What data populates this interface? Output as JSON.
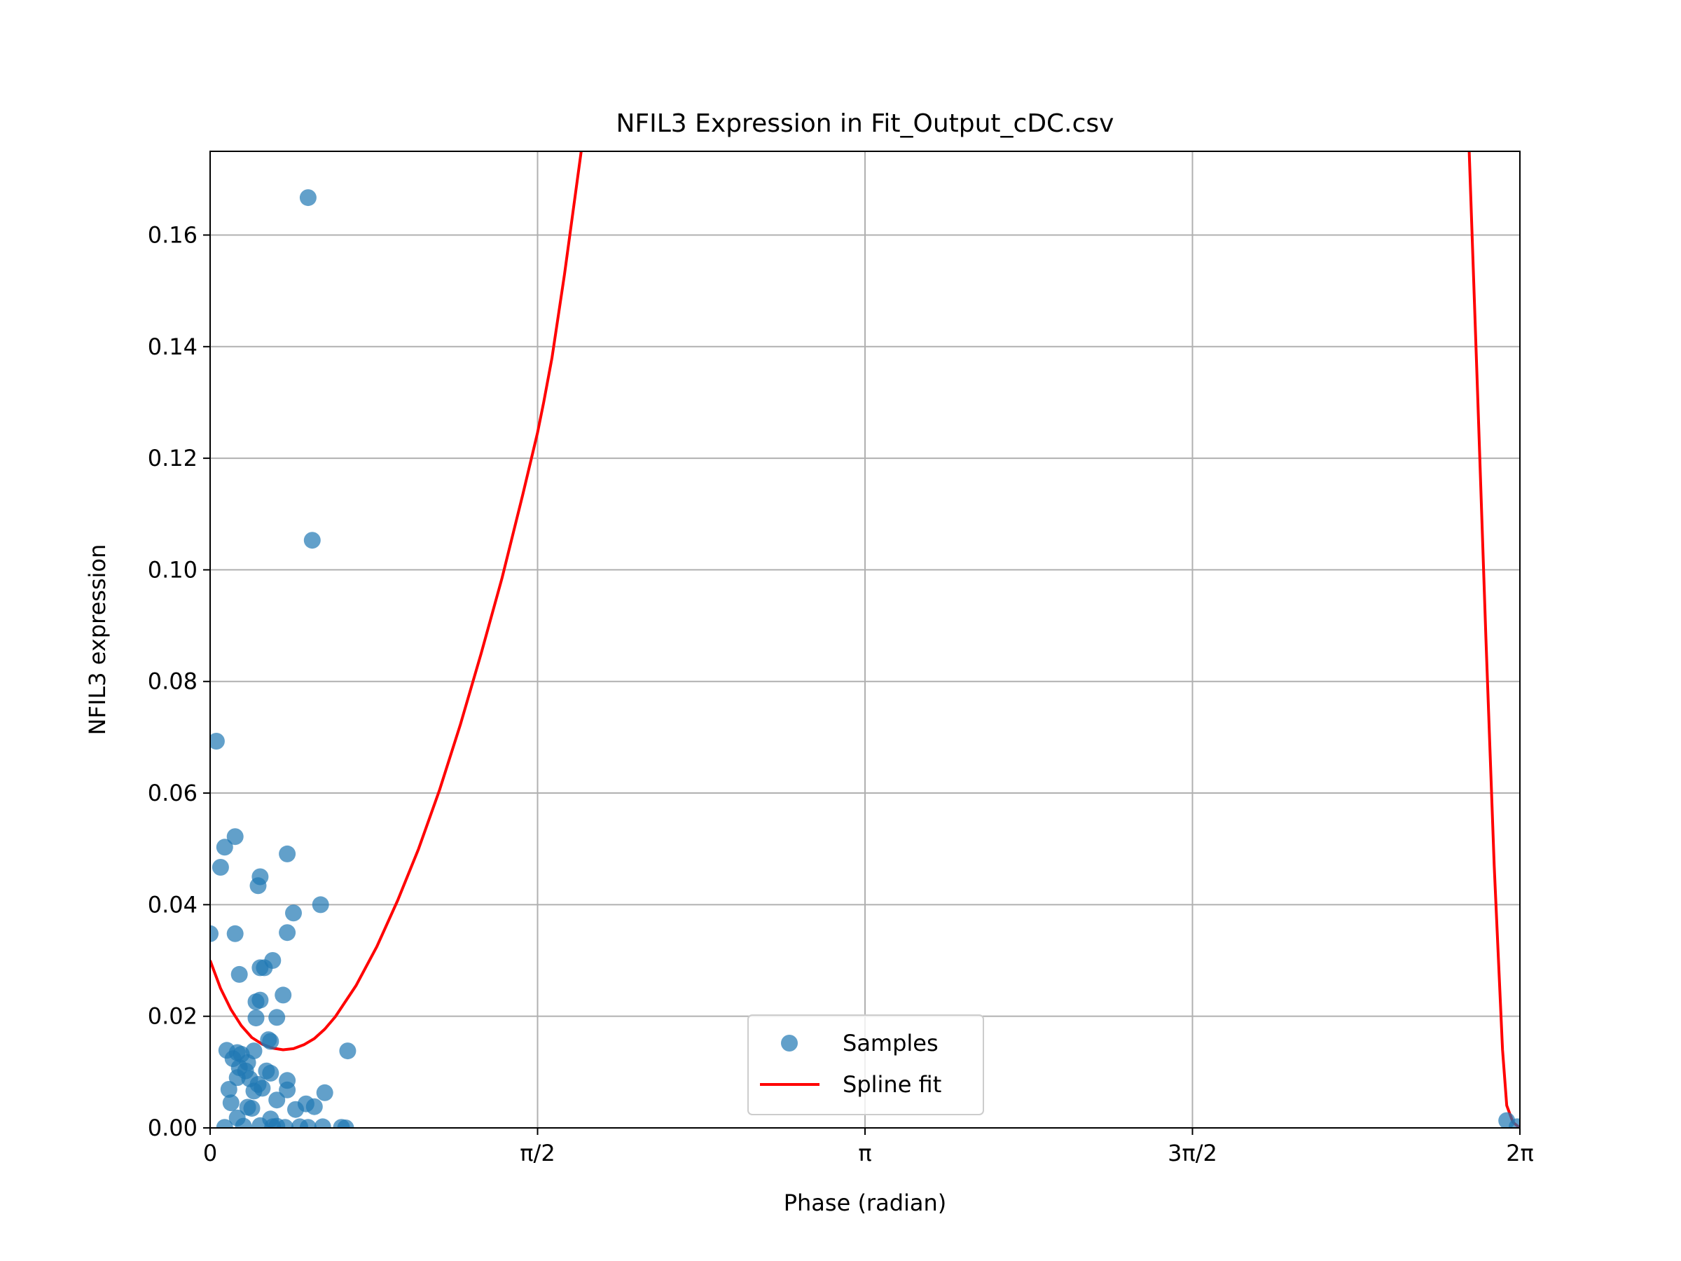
{
  "chart_data": {
    "type": "scatter",
    "title": "NFIL3 Expression in Fit_Output_cDC.csv",
    "xlabel": "Phase (radian)",
    "ylabel": "NFIL3 expression",
    "xlim": [
      0,
      6.283185
    ],
    "ylim": [
      0,
      0.175
    ],
    "x_ticks": [
      {
        "value": 0,
        "label": "0"
      },
      {
        "value": 1.570796,
        "label": "π/2"
      },
      {
        "value": 3.141593,
        "label": "π"
      },
      {
        "value": 4.712389,
        "label": "3π/2"
      },
      {
        "value": 6.283185,
        "label": "2π"
      }
    ],
    "y_ticks": [
      {
        "value": 0.0,
        "label": "0.00"
      },
      {
        "value": 0.02,
        "label": "0.02"
      },
      {
        "value": 0.04,
        "label": "0.04"
      },
      {
        "value": 0.06,
        "label": "0.06"
      },
      {
        "value": 0.08,
        "label": "0.08"
      },
      {
        "value": 0.1,
        "label": "0.10"
      },
      {
        "value": 0.12,
        "label": "0.12"
      },
      {
        "value": 0.14,
        "label": "0.14"
      },
      {
        "value": 0.16,
        "label": "0.16"
      }
    ],
    "grid": true,
    "legend_position": "lower center",
    "series": [
      {
        "name": "Samples",
        "kind": "scatter",
        "color": "#1f77b4",
        "points": [
          [
            0.47,
            0.1667
          ],
          [
            0.49,
            0.1053
          ],
          [
            0.03,
            0.0693
          ],
          [
            0.12,
            0.0522
          ],
          [
            0.07,
            0.0503
          ],
          [
            0.05,
            0.0467
          ],
          [
            0.37,
            0.0491
          ],
          [
            0.24,
            0.045
          ],
          [
            0.23,
            0.0434
          ],
          [
            0.53,
            0.04
          ],
          [
            0.4,
            0.0385
          ],
          [
            0.0,
            0.0348
          ],
          [
            0.12,
            0.0348
          ],
          [
            0.37,
            0.035
          ],
          [
            0.3,
            0.03
          ],
          [
            0.24,
            0.0287
          ],
          [
            0.26,
            0.0287
          ],
          [
            0.14,
            0.0275
          ],
          [
            0.35,
            0.0238
          ],
          [
            0.24,
            0.0229
          ],
          [
            0.22,
            0.0226
          ],
          [
            0.32,
            0.0198
          ],
          [
            0.22,
            0.0197
          ],
          [
            0.28,
            0.0158
          ],
          [
            0.29,
            0.0155
          ],
          [
            0.66,
            0.0138
          ],
          [
            0.08,
            0.0139
          ],
          [
            0.21,
            0.0138
          ],
          [
            0.13,
            0.0135
          ],
          [
            0.11,
            0.0124
          ],
          [
            0.15,
            0.0132
          ],
          [
            0.18,
            0.0117
          ],
          [
            0.14,
            0.0108
          ],
          [
            0.17,
            0.0102
          ],
          [
            0.27,
            0.0102
          ],
          [
            0.29,
            0.0098
          ],
          [
            0.13,
            0.009
          ],
          [
            0.19,
            0.0088
          ],
          [
            0.37,
            0.0085
          ],
          [
            0.23,
            0.0078
          ],
          [
            0.09,
            0.0069
          ],
          [
            0.21,
            0.0066
          ],
          [
            0.25,
            0.0071
          ],
          [
            0.37,
            0.0068
          ],
          [
            0.55,
            0.0063
          ],
          [
            0.32,
            0.005
          ],
          [
            0.1,
            0.0045
          ],
          [
            0.46,
            0.0043
          ],
          [
            0.18,
            0.0037
          ],
          [
            0.2,
            0.0035
          ],
          [
            0.41,
            0.0033
          ],
          [
            0.5,
            0.0038
          ],
          [
            0.13,
            0.0018
          ],
          [
            0.29,
            0.0016
          ],
          [
            0.07,
            0.0001
          ],
          [
            0.16,
            0.0003
          ],
          [
            0.24,
            0.0004
          ],
          [
            0.3,
            0.0002
          ],
          [
            0.32,
            0.0003
          ],
          [
            0.36,
            0.0001
          ],
          [
            0.43,
            0.0002
          ],
          [
            0.47,
            0.0001
          ],
          [
            0.54,
            0.0002
          ],
          [
            0.63,
            0.0001
          ],
          [
            0.65,
            0.0
          ],
          [
            6.22,
            0.0013
          ],
          [
            6.27,
            0.0002
          ]
        ]
      },
      {
        "name": "Spline fit",
        "kind": "line",
        "color": "#ff0000",
        "points": [
          [
            0.0,
            0.03
          ],
          [
            0.05,
            0.025
          ],
          [
            0.1,
            0.0212
          ],
          [
            0.15,
            0.0183
          ],
          [
            0.2,
            0.0162
          ],
          [
            0.25,
            0.015
          ],
          [
            0.3,
            0.0143
          ],
          [
            0.35,
            0.014
          ],
          [
            0.4,
            0.0142
          ],
          [
            0.45,
            0.0149
          ],
          [
            0.5,
            0.016
          ],
          [
            0.55,
            0.0177
          ],
          [
            0.6,
            0.0199
          ],
          [
            0.7,
            0.0255
          ],
          [
            0.8,
            0.0325
          ],
          [
            0.9,
            0.0408
          ],
          [
            1.0,
            0.05
          ],
          [
            1.1,
            0.0605
          ],
          [
            1.2,
            0.0722
          ],
          [
            1.3,
            0.085
          ],
          [
            1.4,
            0.0985
          ],
          [
            1.5,
            0.1135
          ],
          [
            1.57,
            0.1245
          ],
          [
            1.6,
            0.13
          ],
          [
            1.64,
            0.138
          ],
          [
            1.7,
            0.153
          ],
          [
            1.74,
            0.164
          ],
          [
            1.78,
            0.175
          ],
          [
            1.8,
            0.18
          ],
          [
            6.0,
            0.19
          ],
          [
            6.04,
            0.175
          ],
          [
            6.08,
            0.132
          ],
          [
            6.12,
            0.088
          ],
          [
            6.16,
            0.047
          ],
          [
            6.2,
            0.014
          ],
          [
            6.22,
            0.004
          ],
          [
            6.25,
            0.001
          ],
          [
            6.283,
            0.0
          ]
        ]
      }
    ]
  },
  "legend": {
    "items": [
      {
        "label": "Samples",
        "color": "#1f77b4"
      },
      {
        "label": "Spline fit",
        "color": "#ff0000"
      }
    ]
  }
}
